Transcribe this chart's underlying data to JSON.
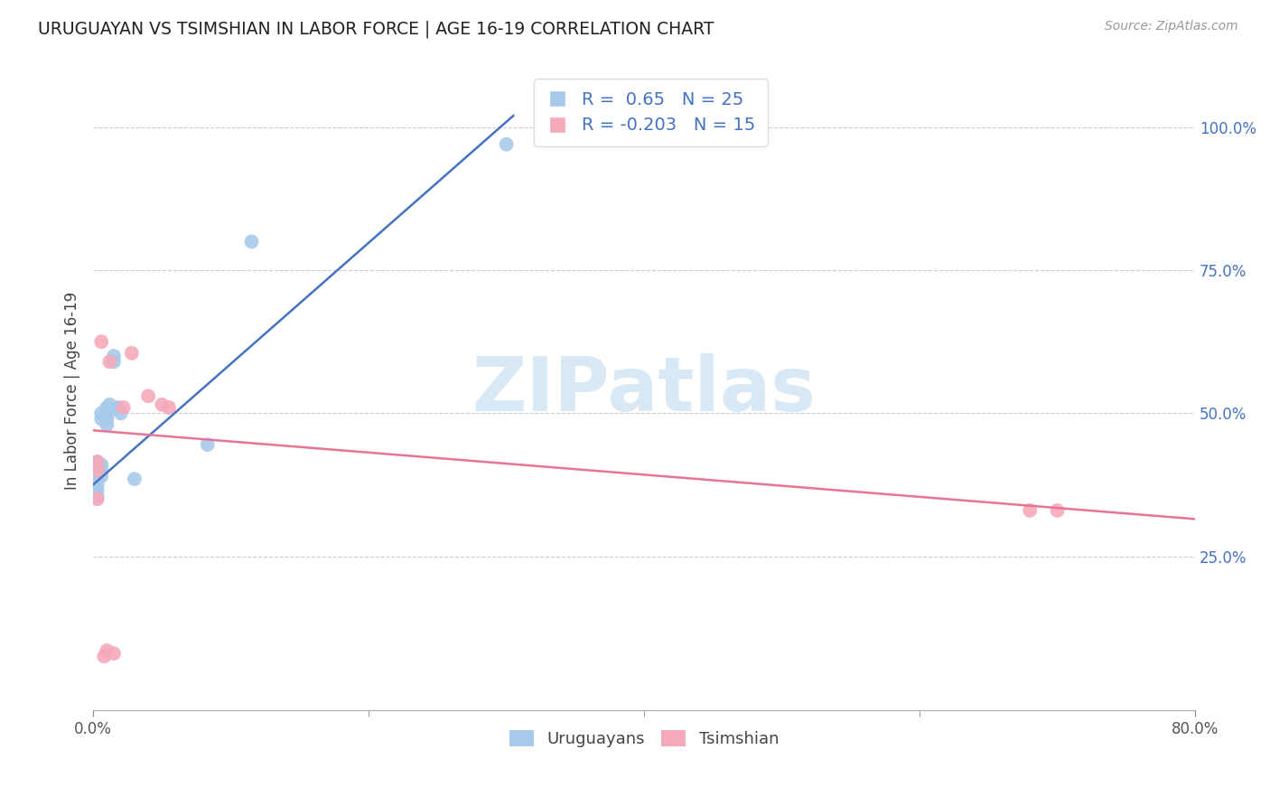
{
  "title": "URUGUAYAN VS TSIMSHIAN IN LABOR FORCE | AGE 16-19 CORRELATION CHART",
  "source": "Source: ZipAtlas.com",
  "ylabel": "In Labor Force | Age 16-19",
  "xlim": [
    0.0,
    0.8
  ],
  "ylim": [
    -0.02,
    1.1
  ],
  "legend_label1": "Uruguayans",
  "legend_label2": "Tsimshian",
  "R1": 0.65,
  "N1": 25,
  "R2": -0.203,
  "N2": 15,
  "blue_color": "#A8CAEA",
  "pink_color": "#F5AABA",
  "blue_line_color": "#4472C4",
  "pink_line_color": "#E87494",
  "yticks": [
    0.25,
    0.5,
    0.75,
    1.0
  ],
  "ytick_labels": [
    "25.0%",
    "50.0%",
    "75.0%",
    "100.0%"
  ],
  "xtick_labels": [
    "0.0%",
    "80.0%"
  ],
  "blue_x": [
    0.003,
    0.003,
    0.003,
    0.003,
    0.003,
    0.003,
    0.003,
    0.006,
    0.006,
    0.006,
    0.006,
    0.006,
    0.01,
    0.01,
    0.01,
    0.01,
    0.012,
    0.015,
    0.015,
    0.018,
    0.02,
    0.03,
    0.083,
    0.115,
    0.3
  ],
  "blue_y": [
    0.415,
    0.405,
    0.395,
    0.385,
    0.375,
    0.365,
    0.355,
    0.5,
    0.49,
    0.41,
    0.4,
    0.39,
    0.51,
    0.5,
    0.49,
    0.48,
    0.515,
    0.6,
    0.59,
    0.51,
    0.5,
    0.385,
    0.445,
    0.8,
    0.97
  ],
  "pink_x": [
    0.003,
    0.003,
    0.003,
    0.006,
    0.012,
    0.022,
    0.028,
    0.04,
    0.05,
    0.055,
    0.68,
    0.7,
    0.01,
    0.008,
    0.015
  ],
  "pink_y": [
    0.415,
    0.4,
    0.35,
    0.625,
    0.59,
    0.51,
    0.605,
    0.53,
    0.515,
    0.51,
    0.33,
    0.33,
    0.085,
    0.075,
    0.08
  ],
  "blue_line_x0": 0.0,
  "blue_line_x1": 0.305,
  "blue_line_y0": 0.375,
  "blue_line_y1": 1.02,
  "pink_line_x0": 0.0,
  "pink_line_x1": 0.8,
  "pink_line_y0": 0.47,
  "pink_line_y1": 0.315
}
